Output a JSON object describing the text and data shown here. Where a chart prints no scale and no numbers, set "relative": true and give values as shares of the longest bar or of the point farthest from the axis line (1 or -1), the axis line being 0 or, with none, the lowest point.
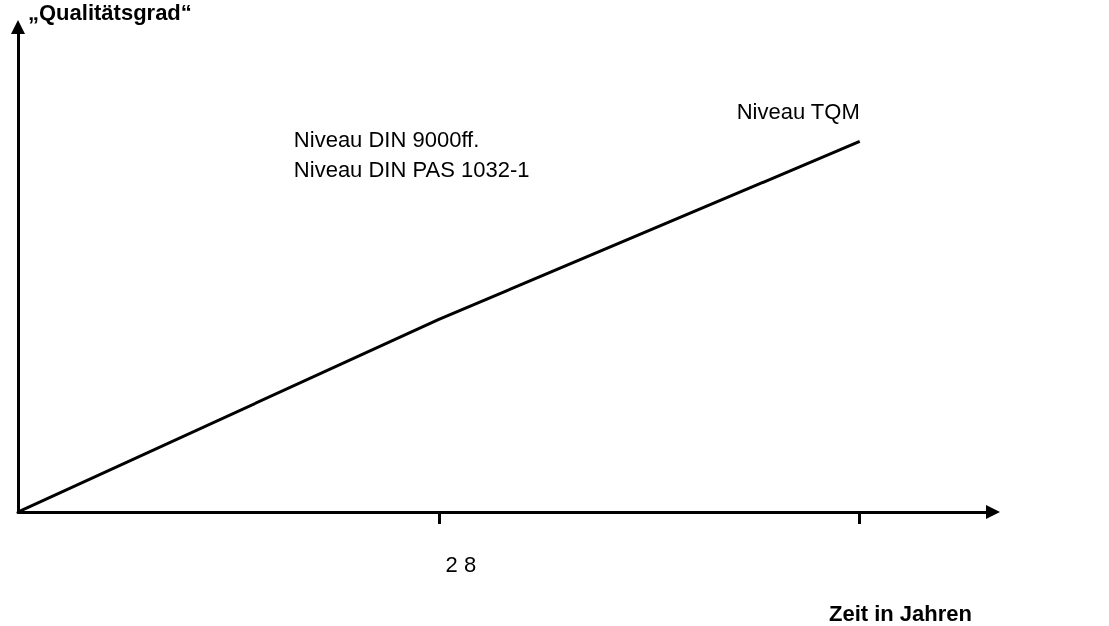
{
  "chart_data": {
    "type": "line",
    "xlabel": "Zeit in Jahren",
    "relative": true,
    "categories": [
      null,
      null,
      null
    ],
    "series": [
      {
        "color": "#000000",
        "values": [
          0,
          0.52,
          1
        ]
      }
    ],
    "annotations": [
      "Niveau DIN 9000ff.",
      "Niveau DIN PAS 1032-1",
      "Niveau TQM",
      "2 8",
      "„Qualitätsgrad“"
    ],
    "marker": "none",
    "grid": false,
    "line_style": "solid"
  }
}
